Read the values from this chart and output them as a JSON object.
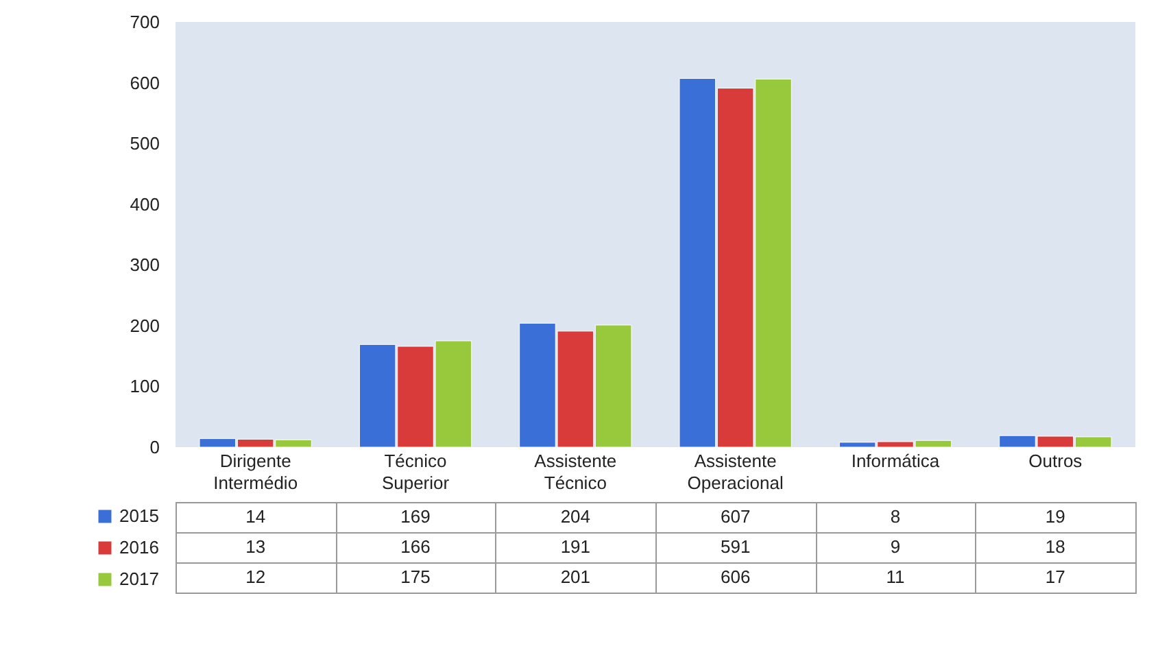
{
  "chart_data": {
    "type": "bar",
    "categories": [
      "Dirigente Intermédio",
      "Técnico Superior",
      "Assistente Técnico",
      "Assistente Operacional",
      "Informática",
      "Outros"
    ],
    "series": [
      {
        "name": "2015",
        "color": "#3a6fd8",
        "values": [
          14,
          169,
          204,
          607,
          8,
          19
        ]
      },
      {
        "name": "2016",
        "color": "#d93b3b",
        "values": [
          13,
          166,
          191,
          591,
          9,
          18
        ]
      },
      {
        "name": "2017",
        "color": "#98c93c",
        "values": [
          12,
          175,
          201,
          606,
          11,
          17
        ]
      }
    ],
    "ylim": [
      0,
      700
    ],
    "yticks": [
      0,
      100,
      200,
      300,
      400,
      500,
      600,
      700
    ],
    "grid": false,
    "legend": "left",
    "data_labels": true
  }
}
